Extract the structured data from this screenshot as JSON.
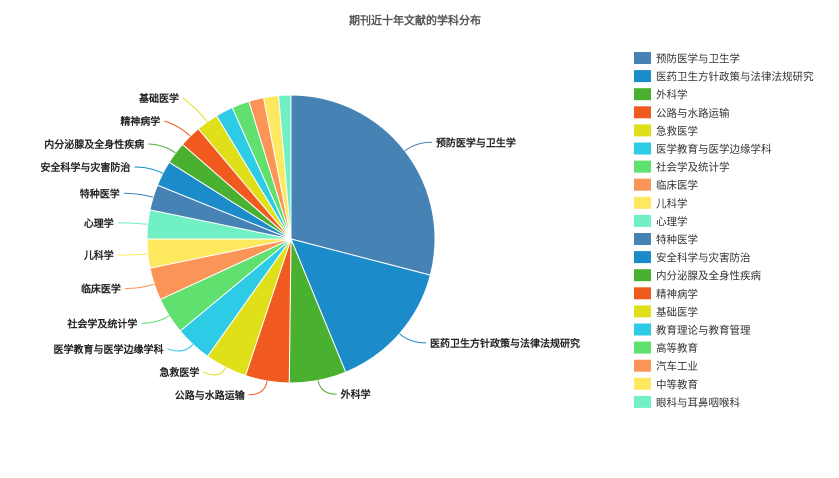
{
  "chart_data": {
    "type": "pie",
    "title": "期刊近十年文献的学科分布",
    "legend_position": "right",
    "categories": [
      "预防医学与卫生学",
      "医药卫生方针政策与法律法规研究",
      "外科学",
      "公路与水路运输",
      "急救医学",
      "医学教育与医学边缘学科",
      "社会学及统计学",
      "临床医学",
      "儿科学",
      "心理学",
      "特种医学",
      "安全科学与灾害防治",
      "内分泌腺及全身性疾病",
      "精神病学",
      "基础医学",
      "教育理论与教育管理",
      "高等教育",
      "汽车工业",
      "中等教育",
      "眼科与耳鼻咽喉科"
    ],
    "values": [
      29.5,
      15.0,
      6.5,
      5.0,
      4.8,
      4.2,
      4.2,
      3.7,
      3.3,
      3.3,
      2.9,
      2.9,
      2.5,
      2.5,
      2.5,
      2.0,
      2.0,
      1.7,
      1.7,
      1.4
    ],
    "colors": [
      "#4682b4",
      "#1b8bc9",
      "#4ab030",
      "#f05a1e",
      "#dfe01a",
      "#2ecbe6",
      "#5fe06f",
      "#fb9457",
      "#fde85f",
      "#70f0c3",
      "#4682b4",
      "#1b8bc9",
      "#4ab030",
      "#f05a1e",
      "#dfe01a",
      "#2ecbe6",
      "#5fe06f",
      "#fb9457",
      "#fde85f",
      "#70f0c3"
    ],
    "labeled_slices": 15
  }
}
